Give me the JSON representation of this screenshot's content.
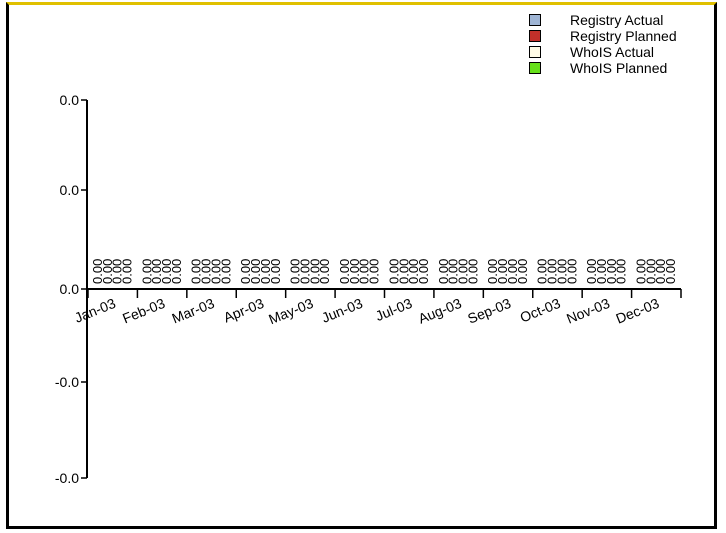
{
  "chart_data": {
    "type": "bar",
    "title": "",
    "xlabel": "",
    "ylabel": "",
    "categories": [
      "Jan-03",
      "Feb-03",
      "Mar-03",
      "Apr-03",
      "May-03",
      "Jun-03",
      "Jul-03",
      "Aug-03",
      "Sep-03",
      "Oct-03",
      "Nov-03",
      "Dec-03"
    ],
    "y_tick_labels": [
      "0.0",
      "0.0",
      "0.0",
      "-0.0",
      "-0.0"
    ],
    "series": [
      {
        "name": "Registry Actual",
        "color": "#9fb5d5",
        "values": [
          0,
          0,
          0,
          0,
          0,
          0,
          0,
          0,
          0,
          0,
          0,
          0
        ],
        "value_labels": [
          "0.00",
          "0.00",
          "0.00",
          "0.00",
          "0.00",
          "0.00",
          "0.00",
          "0.00",
          "0.00",
          "0.00",
          "0.00",
          "0.00"
        ]
      },
      {
        "name": "Registry Planned",
        "color": "#c1302a",
        "values": [
          0,
          0,
          0,
          0,
          0,
          0,
          0,
          0,
          0,
          0,
          0,
          0
        ],
        "value_labels": [
          "0.00",
          "0.00",
          "0.00",
          "0.00",
          "0.00",
          "0.00",
          "0.00",
          "0.00",
          "0.00",
          "0.00",
          "0.00",
          "0.00"
        ]
      },
      {
        "name": "WhoIS Actual",
        "color": "#fffbe6",
        "values": [
          0,
          0,
          0,
          0,
          0,
          0,
          0,
          0,
          0,
          0,
          0,
          0
        ],
        "value_labels": [
          "0.00",
          "0.00",
          "0.00",
          "0.00",
          "0.00",
          "0.00",
          "0.00",
          "0.00",
          "0.00",
          "0.00",
          "0.00",
          "0.00"
        ]
      },
      {
        "name": "WhoIS Planned",
        "color": "#66e01a",
        "values": [
          0,
          0,
          0,
          0,
          0,
          0,
          0,
          0,
          0,
          0,
          0,
          0
        ],
        "value_labels": [
          "0.00",
          "0.00",
          "0.00",
          "0.00",
          "0.00",
          "0.00",
          "0.00",
          "0.00",
          "0.00",
          "0.00",
          "0.00",
          "0.00"
        ]
      }
    ],
    "legend_position": "top-right",
    "grid": false
  }
}
